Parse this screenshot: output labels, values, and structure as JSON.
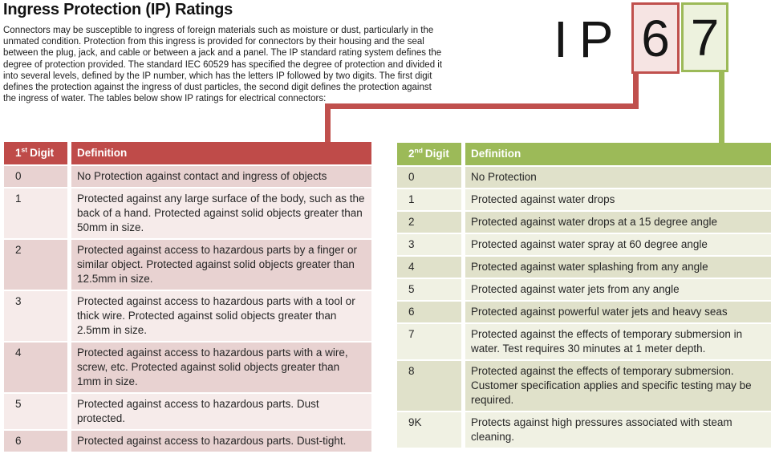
{
  "title": "Ingress Protection (IP) Ratings",
  "intro": "Connectors may be susceptible to ingress of foreign materials such as moisture or dust, particularly in the unmated condition. Protection from this ingress is provided for connectors by their housing and the seal between the plug, jack, and cable or between a jack and a panel. The IP standard rating system defines the degree of protection provided. The standard IEC 60529 has specified the degree of protection and divided it into several levels, defined by the IP number, which has the letters IP followed by two digits. The first digit defines the protection against the ingress of dust particles, the second digit defines the protection against the ingress of water. The tables below show IP ratings for electrical connectors:",
  "ip_badge": {
    "prefix": "IP",
    "first_digit": "6",
    "second_digit": "7"
  },
  "first_digit_table": {
    "header": {
      "digit_num": "1",
      "digit_sup": "st",
      "digit_word": "Digit",
      "definition": "Definition"
    },
    "rows": [
      {
        "digit": "0",
        "definition": "No Protection against contact and ingress of objects"
      },
      {
        "digit": "1",
        "definition": "Protected against any large surface of the body, such as the back of a hand. Protected against solid objects greater than 50mm in size."
      },
      {
        "digit": "2",
        "definition": "Protected against access to hazardous parts by a finger or similar object. Protected against solid objects greater than 12.5mm in size."
      },
      {
        "digit": "3",
        "definition": "Protected against access to hazardous parts with a tool or thick wire. Protected against solid objects greater than 2.5mm in size."
      },
      {
        "digit": "4",
        "definition": "Protected against access to hazardous parts with a wire, screw, etc. Protected against solid objects greater than 1mm in size."
      },
      {
        "digit": "5",
        "definition": "Protected against access to hazardous parts. Dust protected."
      },
      {
        "digit": "6",
        "definition": "Protected against access to hazardous parts. Dust-tight."
      }
    ]
  },
  "second_digit_table": {
    "header": {
      "digit_num": "2",
      "digit_sup": "nd",
      "digit_word": "Digit",
      "definition": "Definition"
    },
    "rows": [
      {
        "digit": "0",
        "definition": "No Protection"
      },
      {
        "digit": "1",
        "definition": "Protected against water drops"
      },
      {
        "digit": "2",
        "definition": "Protected against water drops at a 15 degree angle"
      },
      {
        "digit": "3",
        "definition": "Protected against water spray at 60 degree angle"
      },
      {
        "digit": "4",
        "definition": "Protected against water splashing from any angle"
      },
      {
        "digit": "5",
        "definition": "Protected against water jets from any angle"
      },
      {
        "digit": "6",
        "definition": "Protected against powerful water jets and heavy seas"
      },
      {
        "digit": "7",
        "definition": "Protected against the effects of temporary submersion in water. Test requires 30 minutes at 1 meter depth."
      },
      {
        "digit": "8",
        "definition": "Protected against the effects of temporary submersion. Customer specification applies and specific testing may be required."
      },
      {
        "digit": "9K",
        "definition": "Protects against high pressures associated with steam cleaning."
      }
    ]
  },
  "colors": {
    "red_accent": "#c0504d",
    "red_header": "#bf4b49",
    "red_row_dark": "#e8d2d1",
    "red_row_light": "#f6ebea",
    "red_box_fill": "#f6e4e3",
    "green_accent": "#9cba58",
    "green_row_dark": "#e0e1ca",
    "green_row_light": "#f0f1e3",
    "green_box_fill": "#edf2de"
  }
}
